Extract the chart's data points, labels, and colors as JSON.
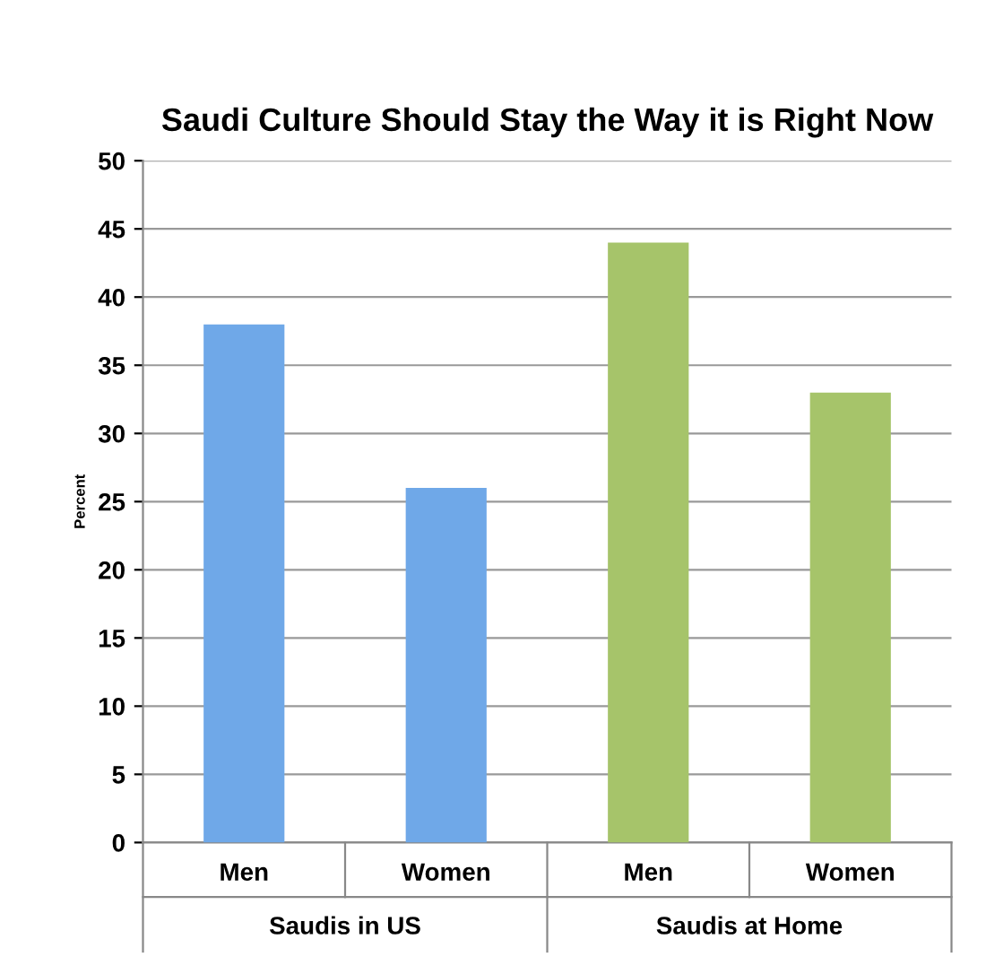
{
  "chart_data": {
    "type": "bar",
    "title": "Saudi Culture Should Stay the Way it is Right Now",
    "ylabel": "Percent",
    "categories": [
      "Men",
      "Women",
      "Men",
      "Women"
    ],
    "values": [
      38,
      26,
      44,
      33
    ],
    "colors": [
      "#6fa8e8",
      "#6fa8e8",
      "#a6c46a",
      "#a6c46a"
    ],
    "annotations": [
      "Saudis in US",
      "Saudis at Home"
    ],
    "ylim": [
      0,
      50
    ],
    "yticks": [
      0,
      5,
      10,
      15,
      20,
      25,
      30,
      35,
      40,
      45,
      50
    ],
    "grid": "y"
  }
}
